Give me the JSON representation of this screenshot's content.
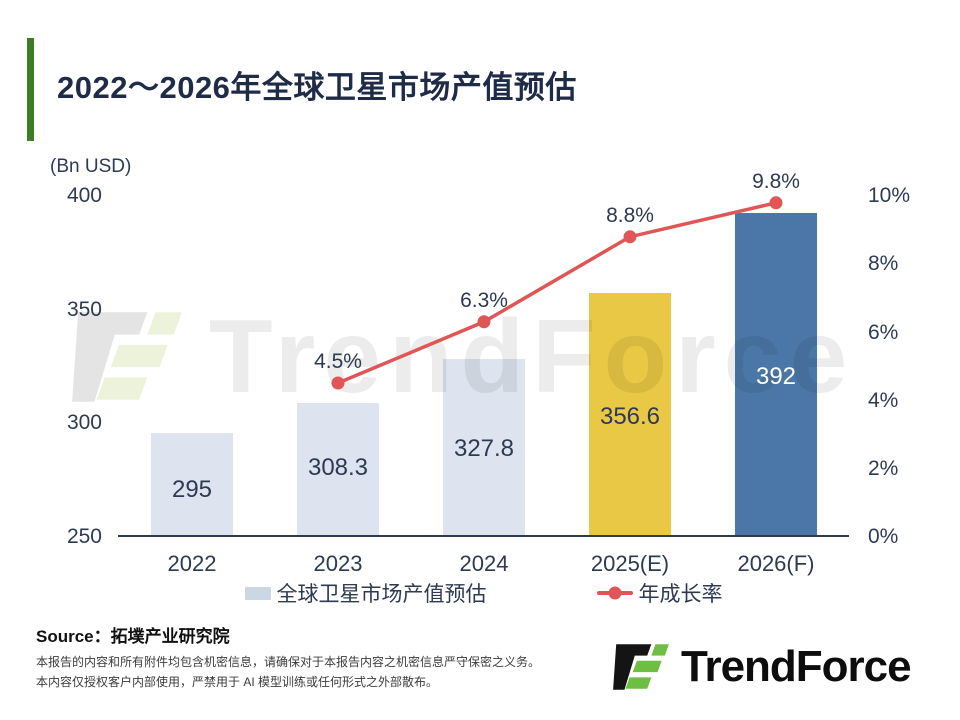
{
  "title": "2022～2026年全球卫星市场产值预估",
  "axis_unit": "(Bn USD)",
  "chart_data": {
    "type": "bar+line",
    "title": "2022～2026年全球卫星市场产值预估",
    "categories": [
      "2022",
      "2023",
      "2024",
      "2025(E)",
      "2026(F)"
    ],
    "series": [
      {
        "name": "全球卫星市场产值预估",
        "type": "bar",
        "values": [
          295,
          308.3,
          327.8,
          356.6,
          392
        ]
      },
      {
        "name": "年成长率",
        "type": "line",
        "values": [
          null,
          4.5,
          6.3,
          8.8,
          9.8
        ]
      }
    ],
    "bar_value_labels": [
      "295",
      "308.3",
      "327.8",
      "356.6",
      "392"
    ],
    "growth_labels": [
      "4.5%",
      "6.3%",
      "8.8%",
      "9.8%"
    ],
    "left_axis": {
      "label": "(Bn USD)",
      "ticks": [
        "400",
        "350",
        "300",
        "250"
      ],
      "min": 250,
      "max": 400
    },
    "right_axis": {
      "ticks": [
        "10%",
        "8%",
        "6%",
        "4%",
        "2%",
        "0%"
      ],
      "min": 0,
      "max": 10
    },
    "legend": [
      {
        "label": "全球卫星市场产值预估",
        "color": "#dde4ef"
      },
      {
        "label": "年成长率",
        "color": "#e05656"
      }
    ],
    "colors": {
      "bar_default": "#dde4ef",
      "bar_2025": "#e9c845",
      "bar_2026": "#4b77a8",
      "line": "#e05656",
      "accent_green": "#3e7d25",
      "logo_green": "#6fbe44",
      "axis_text": "#2e3b55"
    },
    "grid": "off",
    "legend_position": "bottom"
  },
  "source": {
    "label": "Source：拓墣产业研究院"
  },
  "disclaimer": {
    "line1": "本报告的内容和所有附件均包含机密信息，请确保对于本报告内容之机密信息严守保密之义务。",
    "line2": "本内容仅授权客户内部使用，严禁用于 AI 模型训练或任何形式之外部散布。"
  },
  "logo": {
    "text": "TrendForce"
  },
  "watermark": {
    "text": "TrendForce"
  }
}
